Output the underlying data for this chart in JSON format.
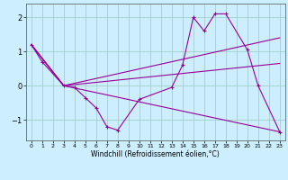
{
  "xlabel": "Windchill (Refroidissement éolien,°C)",
  "background_color": "#cceeff",
  "line_color": "#990099",
  "grid_color": "#99ccbb",
  "xlim": [
    -0.5,
    23.5
  ],
  "ylim": [
    -1.6,
    2.4
  ],
  "yticks": [
    -1,
    0,
    1,
    2
  ],
  "xticks": [
    0,
    1,
    2,
    3,
    4,
    5,
    6,
    7,
    8,
    9,
    10,
    11,
    12,
    13,
    14,
    15,
    16,
    17,
    18,
    19,
    20,
    21,
    22,
    23
  ],
  "line_main": {
    "x": [
      0,
      1,
      3,
      4,
      5,
      6,
      7,
      8,
      10,
      13,
      14,
      15,
      16,
      17,
      18,
      20,
      21,
      23
    ],
    "y": [
      1.2,
      0.7,
      0.0,
      -0.05,
      -0.35,
      -0.65,
      -1.2,
      -1.3,
      -0.4,
      -0.05,
      0.6,
      2.0,
      1.6,
      2.1,
      2.1,
      1.05,
      0.0,
      -1.35
    ]
  },
  "line1": {
    "x": [
      0,
      3,
      23
    ],
    "y": [
      1.2,
      0.0,
      1.4
    ]
  },
  "line2": {
    "x": [
      0,
      3,
      23
    ],
    "y": [
      1.2,
      0.0,
      0.65
    ]
  },
  "line3": {
    "x": [
      0,
      3,
      23
    ],
    "y": [
      1.2,
      0.0,
      -1.35
    ]
  }
}
